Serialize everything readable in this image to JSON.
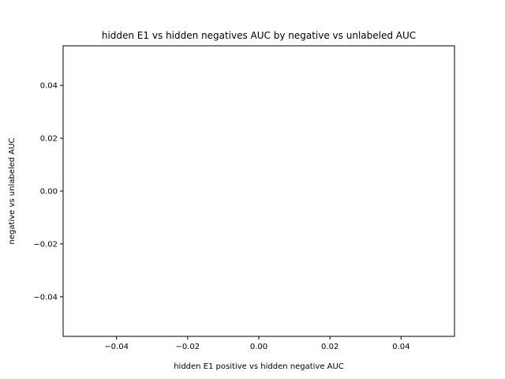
{
  "chart_data": {
    "type": "scatter",
    "title": "hidden E1 vs hidden negatives AUC by negative vs unlabeled AUC",
    "xlabel": "hidden E1 positive vs hidden negative  AUC",
    "ylabel": "negative vs unlabeled AUC",
    "xlim": [
      -0.055,
      0.055
    ],
    "ylim": [
      -0.055,
      0.055
    ],
    "xticks": [
      -0.04,
      -0.02,
      0.0,
      0.02,
      0.04
    ],
    "xtick_labels": [
      "−0.04",
      "−0.02",
      "0.00",
      "0.02",
      "0.04"
    ],
    "yticks": [
      -0.04,
      -0.02,
      0.0,
      0.02,
      0.04
    ],
    "ytick_labels": [
      "−0.04",
      "−0.02",
      "0.00",
      "0.02",
      "0.04"
    ],
    "series": [],
    "grid": false,
    "legend": "none"
  }
}
